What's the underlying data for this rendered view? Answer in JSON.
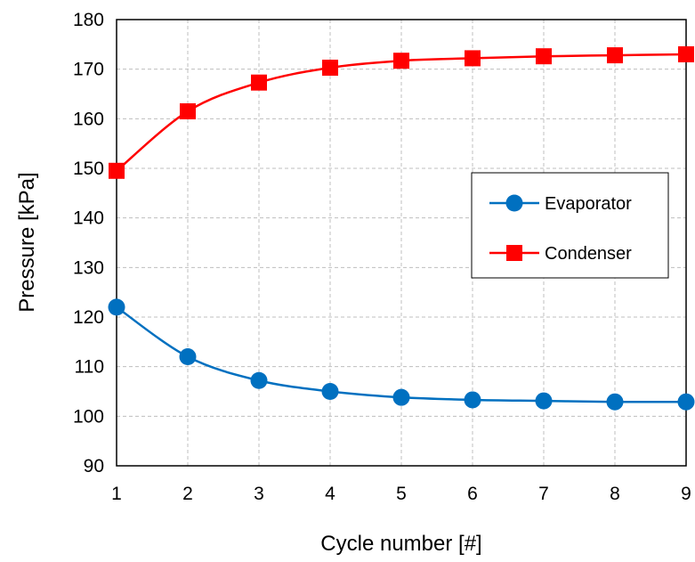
{
  "chart_data": {
    "type": "line",
    "title": "",
    "xlabel": "Cycle number [#]",
    "ylabel": "Pressure [kPa]",
    "x": [
      1,
      2,
      3,
      4,
      5,
      6,
      7,
      8,
      9
    ],
    "xlim": [
      1,
      9
    ],
    "ylim": [
      90,
      180
    ],
    "xticks": [
      "1",
      "2",
      "3",
      "4",
      "5",
      "6",
      "7",
      "8",
      "9"
    ],
    "yticks": [
      "90",
      "100",
      "110",
      "120",
      "130",
      "140",
      "150",
      "160",
      "170",
      "180"
    ],
    "grid": true,
    "legend_position": "right",
    "series": [
      {
        "name": "Evaporator",
        "marker": "circle",
        "color": "#0070C0",
        "values": [
          122,
          112,
          107.2,
          105,
          103.8,
          103.3,
          103.1,
          102.9,
          102.9
        ]
      },
      {
        "name": "Condenser",
        "marker": "square",
        "color": "#FF0000",
        "values": [
          149.5,
          161.5,
          167.3,
          170.3,
          171.7,
          172.2,
          172.6,
          172.8,
          173
        ]
      }
    ]
  }
}
